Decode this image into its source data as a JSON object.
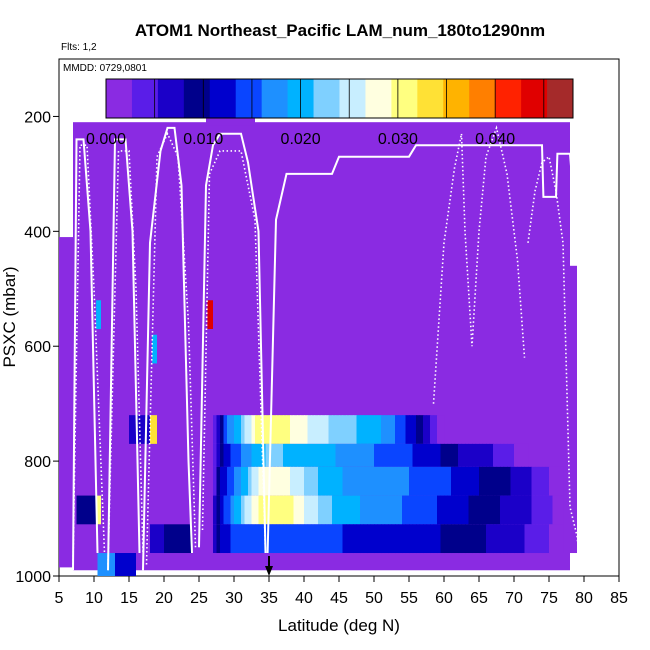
{
  "chart_data": {
    "type": "heatmap",
    "title": "ATOM1 Northeast_Pacific LAM_num_180to1290nm",
    "flights_label": "Flts: 1,2",
    "dates_label": "MMDD: 0729,0801",
    "xlabel": "Latitude (deg N)",
    "ylabel": "PSXC (mbar)",
    "xlim": [
      5,
      85
    ],
    "ylim": [
      1000,
      100
    ],
    "xticks": [
      5,
      10,
      15,
      20,
      25,
      30,
      35,
      40,
      45,
      50,
      55,
      60,
      65,
      70,
      75,
      80,
      85
    ],
    "yticks": [
      200,
      400,
      600,
      800,
      1000
    ],
    "colorbar": {
      "ticks": [
        "0.000",
        "0.010",
        "0.020",
        "0.030",
        "0.040"
      ],
      "range": [
        0,
        0.048
      ],
      "colors": [
        "#8a2be2",
        "#5a1de8",
        "#1b00c8",
        "#00008b",
        "#0000cd",
        "#0a45ff",
        "#1e90ff",
        "#00b2ff",
        "#7fd0ff",
        "#c8eeff",
        "#ffffe0",
        "#ffff80",
        "#ffe135",
        "#ffb300",
        "#ff7f00",
        "#ff2200",
        "#e00000",
        "#a52a2a"
      ]
    },
    "background_value": 0.0,
    "cells": [
      {
        "lat": [
          7,
          78
        ],
        "p": [
          210,
          990
        ],
        "v": 0.0
      },
      {
        "lat": [
          26,
          33
        ],
        "p": [
          160,
          215
        ],
        "v": 0.0
      },
      {
        "lat": [
          5,
          7
        ],
        "p": [
          410,
          985
        ],
        "v": 0.0
      },
      {
        "lat": [
          78,
          79
        ],
        "p": [
          460,
          960
        ],
        "v": 0.0
      },
      {
        "lat": [
          10.3,
          11
        ],
        "p": [
          520,
          570
        ],
        "v": 0.02
      },
      {
        "lat": [
          18.3,
          19
        ],
        "p": [
          580,
          630
        ],
        "v": 0.02
      },
      {
        "lat": [
          26.2,
          27
        ],
        "p": [
          520,
          570
        ],
        "v": 0.045
      },
      {
        "lat": [
          7.5,
          10.8
        ],
        "p": [
          860,
          910
        ],
        "v": 0.008
      },
      {
        "lat": [
          10.3,
          11
        ],
        "p": [
          860,
          910
        ],
        "v": 0.03
      },
      {
        "lat": [
          10.5,
          13
        ],
        "p": [
          960,
          1000
        ],
        "v": 0.018
      },
      {
        "lat": [
          13,
          16
        ],
        "p": [
          960,
          1000
        ],
        "v": 0.012
      },
      {
        "lat": [
          15,
          18
        ],
        "p": [
          720,
          770
        ],
        "v": 0.006
      },
      {
        "lat": [
          18,
          19
        ],
        "p": [
          720,
          770
        ],
        "v": 0.032
      },
      {
        "lat": [
          18,
          20
        ],
        "p": [
          910,
          960
        ],
        "v": 0.006
      },
      {
        "lat": [
          20,
          24
        ],
        "p": [
          910,
          960
        ],
        "v": 0.009
      }
    ],
    "gradient_rows": [
      {
        "p": [
          720,
          770
        ],
        "stops": [
          [
            27,
            0.003
          ],
          [
            28,
            0.008
          ],
          [
            29,
            0.016
          ],
          [
            31,
            0.022
          ],
          [
            33,
            0.029
          ],
          [
            35,
            0.032
          ],
          [
            37,
            0.031
          ],
          [
            39,
            0.028
          ],
          [
            42,
            0.025
          ],
          [
            46,
            0.022
          ],
          [
            50,
            0.02
          ],
          [
            54,
            0.015
          ],
          [
            58,
            0.006
          ],
          [
            60,
            0.0
          ]
        ]
      },
      {
        "p": [
          770,
          810
        ],
        "stops": [
          [
            27,
            0.003
          ],
          [
            28,
            0.009
          ],
          [
            30,
            0.014
          ],
          [
            33,
            0.02
          ],
          [
            35,
            0.022
          ],
          [
            38,
            0.021
          ],
          [
            42,
            0.02
          ],
          [
            46,
            0.018
          ],
          [
            50,
            0.016
          ],
          [
            54,
            0.014
          ],
          [
            58,
            0.012
          ],
          [
            62,
            0.008
          ],
          [
            66,
            0.006
          ],
          [
            70,
            0.003
          ],
          [
            72,
            0.0
          ]
        ]
      },
      {
        "p": [
          810,
          860
        ],
        "stops": [
          [
            27,
            0.003
          ],
          [
            28,
            0.01
          ],
          [
            30,
            0.016
          ],
          [
            32,
            0.022
          ],
          [
            34,
            0.028
          ],
          [
            36,
            0.029
          ],
          [
            38,
            0.027
          ],
          [
            40,
            0.024
          ],
          [
            43,
            0.02
          ],
          [
            47,
            0.018
          ],
          [
            52,
            0.017
          ],
          [
            58,
            0.015
          ],
          [
            63,
            0.012
          ],
          [
            68,
            0.009
          ],
          [
            72,
            0.006
          ],
          [
            75,
            0.003
          ],
          [
            77,
            0.0
          ]
        ]
      },
      {
        "p": [
          860,
          910
        ],
        "stops": [
          [
            27,
            0.004
          ],
          [
            28,
            0.012
          ],
          [
            30,
            0.018
          ],
          [
            32,
            0.025
          ],
          [
            34,
            0.031
          ],
          [
            36,
            0.032
          ],
          [
            38,
            0.03
          ],
          [
            40,
            0.027
          ],
          [
            43,
            0.022
          ],
          [
            47,
            0.019
          ],
          [
            52,
            0.017
          ],
          [
            58,
            0.014
          ],
          [
            63,
            0.011
          ],
          [
            68,
            0.008
          ],
          [
            72,
            0.006
          ],
          [
            76,
            0.002
          ],
          [
            77,
            0.0
          ]
        ]
      },
      {
        "p": [
          910,
          960
        ],
        "stops": [
          [
            27,
            0.004
          ],
          [
            28,
            0.012
          ],
          [
            30,
            0.014
          ],
          [
            34,
            0.015
          ],
          [
            40,
            0.014
          ],
          [
            48,
            0.013
          ],
          [
            55,
            0.012
          ],
          [
            62,
            0.01
          ],
          [
            68,
            0.007
          ],
          [
            72,
            0.005
          ],
          [
            76,
            0.002
          ],
          [
            77,
            0.0
          ]
        ]
      }
    ],
    "profiles_solid": [
      [
        [
          7,
          990
        ],
        [
          7.5,
          240
        ],
        [
          8.5,
          240
        ],
        [
          9.5,
          400
        ],
        [
          10.5,
          960
        ]
      ],
      [
        [
          12,
          990
        ],
        [
          13,
          240
        ],
        [
          14.5,
          240
        ],
        [
          15.5,
          400
        ],
        [
          16.5,
          960
        ]
      ],
      [
        [
          17,
          990
        ],
        [
          18,
          420
        ],
        [
          19.5,
          260
        ],
        [
          20.5,
          220
        ],
        [
          21.5,
          220
        ],
        [
          22.5,
          320
        ],
        [
          23.5,
          800
        ],
        [
          24,
          960
        ]
      ],
      [
        [
          25,
          950
        ],
        [
          26,
          320
        ],
        [
          27,
          250
        ],
        [
          28,
          230
        ],
        [
          31,
          230
        ],
        [
          32,
          280
        ],
        [
          33.5,
          400
        ],
        [
          34.5,
          960
        ]
      ],
      [
        [
          34.8,
          960
        ],
        [
          36,
          380
        ],
        [
          37.5,
          300
        ],
        [
          44,
          300
        ],
        [
          45,
          270
        ],
        [
          55,
          270
        ],
        [
          56,
          250
        ],
        [
          74,
          250
        ],
        [
          74.2,
          340
        ],
        [
          76,
          340
        ],
        [
          76.2,
          265
        ],
        [
          78,
          265
        ],
        [
          78.5,
          340
        ]
      ]
    ],
    "profiles_dotted": [
      [
        [
          7,
          980
        ],
        [
          8,
          250
        ],
        [
          9,
          250
        ],
        [
          10,
          500
        ],
        [
          11.5,
          960
        ]
      ],
      [
        [
          12,
          980
        ],
        [
          13.5,
          260
        ],
        [
          15,
          260
        ],
        [
          16,
          500
        ],
        [
          17,
          960
        ]
      ],
      [
        [
          17.5,
          980
        ],
        [
          19,
          270
        ],
        [
          20.5,
          230
        ],
        [
          22,
          270
        ],
        [
          23.5,
          560
        ],
        [
          24.5,
          950
        ]
      ],
      [
        [
          25.5,
          920
        ],
        [
          26.5,
          300
        ],
        [
          28,
          260
        ],
        [
          31,
          260
        ],
        [
          33,
          380
        ],
        [
          34.5,
          960
        ]
      ],
      [
        [
          58.5,
          700
        ],
        [
          60,
          420
        ],
        [
          61.5,
          290
        ],
        [
          62.5,
          230
        ],
        [
          63,
          400
        ],
        [
          64,
          600
        ],
        [
          65,
          400
        ],
        [
          66,
          270
        ],
        [
          67.5,
          220
        ],
        [
          69,
          300
        ],
        [
          70.5,
          450
        ],
        [
          71.5,
          620
        ]
      ],
      [
        [
          72,
          420
        ],
        [
          73,
          330
        ],
        [
          74,
          280
        ],
        [
          75,
          270
        ],
        [
          76,
          330
        ],
        [
          77,
          420
        ],
        [
          78,
          880
        ],
        [
          79,
          930
        ],
        [
          79.5,
          990
        ]
      ]
    ],
    "marker": {
      "lat": 35,
      "label": ""
    }
  }
}
